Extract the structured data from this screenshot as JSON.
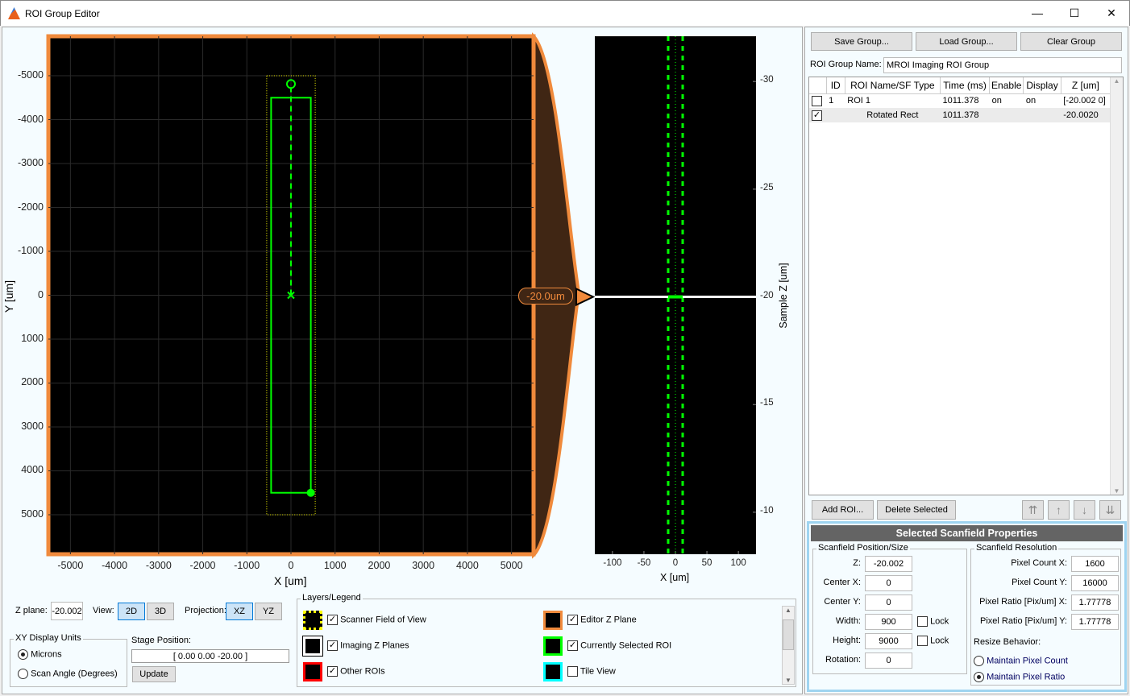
{
  "window": {
    "title": "ROI Group Editor",
    "controls": [
      "minimize",
      "maximize",
      "close"
    ]
  },
  "main_plot": {
    "xlabel": "X [um]",
    "ylabel": "Y [um]",
    "xticks": [
      "-5000",
      "-4000",
      "-3000",
      "-2000",
      "-1000",
      "0",
      "1000",
      "2000",
      "3000",
      "4000",
      "5000"
    ],
    "yticks": [
      "-5000",
      "-4000",
      "-3000",
      "-2000",
      "-1000",
      "0",
      "1000",
      "2000",
      "3000",
      "4000",
      "5000"
    ],
    "xlim": [
      -5500,
      5500
    ],
    "ylim": [
      -5900,
      5900
    ],
    "roi": {
      "center_x": 0,
      "center_y": 0,
      "width": 900,
      "height": 9000,
      "color": "#00ff00"
    },
    "scanner_fov": {
      "x": [
        -550,
        550
      ],
      "y": [
        -5000,
        5000
      ],
      "color": "#ffff00"
    },
    "frame_color": "#f08a3c"
  },
  "z_indicator": {
    "label": "-20.0um",
    "value": -20.0
  },
  "side_plot": {
    "xlabel": "X [um]",
    "ylabel": "Sample Z [um]",
    "xticks": [
      "-100",
      "-50",
      "0",
      "50",
      "100"
    ],
    "yticks": [
      "-30",
      "-25",
      "-20",
      "-15",
      "-10"
    ],
    "xlim": [
      -128,
      128
    ],
    "ylim": [
      -32.1,
      -8.05
    ],
    "plane_z": -20
  },
  "controls": {
    "zplane_label": "Z plane:",
    "zplane_value": "-20.002",
    "view_label": "View:",
    "view_2d": "2D",
    "view_3d": "3D",
    "view_selected": "2D",
    "projection_label": "Projection:",
    "proj_xz": "XZ",
    "proj_yz": "YZ",
    "proj_selected": "XZ",
    "units_title": "XY Display Units",
    "units_microns": "Microns",
    "units_angle": "Scan Angle (Degrees)",
    "units_selected": "Microns",
    "stage_label": "Stage Position:",
    "stage_value": "[ 0.00   0.00   -20.00 ]",
    "update": "Update"
  },
  "legend": {
    "title": "Layers/Legend",
    "items": [
      {
        "label": "Scanner Field of View",
        "checked": true,
        "color": "#ffff00"
      },
      {
        "label": "Imaging Z Planes",
        "checked": true,
        "color": "#ffffff"
      },
      {
        "label": "Other ROIs",
        "checked": true,
        "color": "#ff0000"
      },
      {
        "label": "Editor Z Plane",
        "checked": true,
        "color": "#f08a3c"
      },
      {
        "label": "Currently Selected ROI",
        "checked": true,
        "color": "#00ff00"
      },
      {
        "label": "Tile View",
        "checked": false,
        "color": "#00ffff"
      }
    ]
  },
  "group": {
    "save": "Save Group...",
    "load": "Load Group...",
    "clear": "Clear Group",
    "name_label": "ROI Group Name:",
    "name_value": "MROI Imaging ROI Group"
  },
  "table": {
    "headers": [
      "",
      "ID",
      "ROI Name/SF Type",
      "Time (ms)",
      "Enable",
      "Display",
      "Z [um]"
    ],
    "rows": [
      {
        "checked": false,
        "id": "1",
        "name": "ROI 1",
        "time": "1011.378",
        "enable": "on",
        "display": "on",
        "z": "[-20.002  0]"
      },
      {
        "checked": true,
        "id": "",
        "name": "Rotated Rect",
        "time": "1011.378",
        "enable": "",
        "display": "",
        "z": "-20.0020"
      }
    ]
  },
  "roi_buttons": {
    "add": "Add ROI...",
    "delete": "Delete Selected",
    "top": "⇈",
    "up": "↑",
    "down": "↓",
    "bottom": "⇊"
  },
  "props": {
    "title": "Selected Scanfield Properties",
    "pos_title": "Scanfield Position/Size",
    "z_label": "Z:",
    "z": "-20.002",
    "cx_label": "Center X:",
    "cx": "0",
    "cy_label": "Center Y:",
    "cy": "0",
    "w_label": "Width:",
    "w": "900",
    "h_label": "Height:",
    "h": "9000",
    "rot_label": "Rotation:",
    "rot": "0",
    "lock": "Lock",
    "res_title": "Scanfield Resolution",
    "pcx_label": "Pixel Count X:",
    "pcx": "1600",
    "pcy_label": "Pixel Count Y:",
    "pcy": "16000",
    "prx_label": "Pixel Ratio [Pix/um] X:",
    "prx": "1.77778",
    "pry_label": "Pixel Ratio [Pix/um] Y:",
    "pry": "1.77778",
    "resize_label": "Resize Behavior:",
    "keep_count": "Maintain Pixel Count",
    "keep_ratio": "Maintain Pixel Ratio",
    "resize_selected": "Maintain Pixel Ratio"
  }
}
